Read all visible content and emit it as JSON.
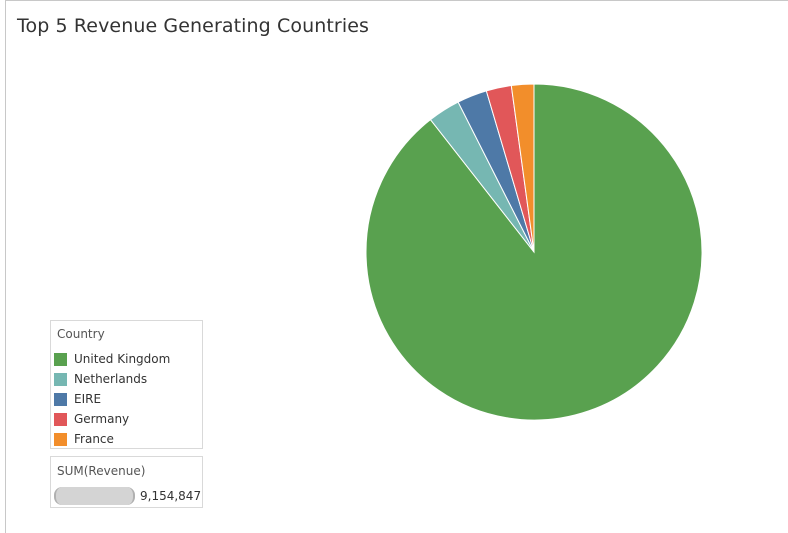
{
  "title": "Top 5 Revenue Generating Countries",
  "legend": {
    "title": "Country",
    "items": [
      {
        "label": "United Kingdom",
        "color": "#59a14f"
      },
      {
        "label": "Netherlands",
        "color": "#76b7b2"
      },
      {
        "label": "EIRE",
        "color": "#4e79a7"
      },
      {
        "label": "Germany",
        "color": "#e15759"
      },
      {
        "label": "France",
        "color": "#f28e2b"
      }
    ]
  },
  "size_legend": {
    "title": "SUM(Revenue)",
    "value": "9,154,847"
  },
  "chart_data": {
    "type": "pie",
    "title": "Top 5 Revenue Generating Countries",
    "measure": "SUM(Revenue)",
    "legend_title": "Country",
    "legend_position": "bottom-left",
    "total": 9154847,
    "categories": [
      "United Kingdom",
      "Netherlands",
      "EIRE",
      "Germany",
      "France"
    ],
    "values": [
      8187806,
      284662,
      263277,
      221698,
      197404
    ],
    "colors": [
      "#59a14f",
      "#76b7b2",
      "#4e79a7",
      "#e15759",
      "#f28e2b"
    ]
  }
}
